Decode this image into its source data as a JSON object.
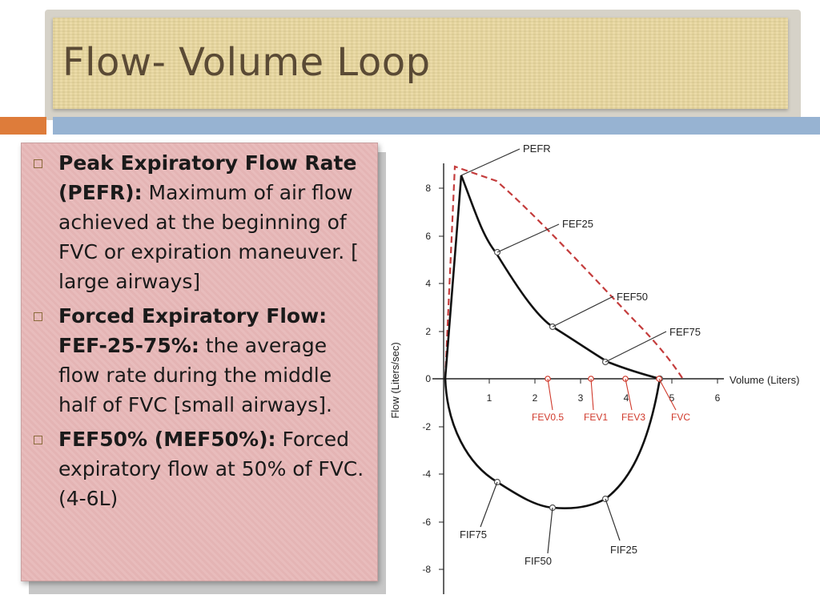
{
  "slide": {
    "title": "Flow- Volume Loop",
    "colors": {
      "title_bg": "#ead9a1",
      "accent_orange": "#de7c3a",
      "accent_blue": "#97b3d2",
      "panel_bg": "#e7b8b8",
      "title_text": "#5a4a35"
    }
  },
  "bullets": [
    {
      "term": "Peak Expiratory Flow Rate (PEFR):",
      "text": " Maximum of air flow achieved at the beginning of FVC or expiration maneuver. [ large airways]"
    },
    {
      "term": "Forced Expiratory Flow: FEF-25-75%:",
      "text": " the average flow rate during the middle half of FVC [small airways]."
    },
    {
      "term": "FEF50% (MEF50%):",
      "text": " Forced expiratory flow at 50% of FVC. (4-6L)"
    }
  ],
  "diagram": {
    "y_axis_label": "Flow (Liters/sec)",
    "x_axis_label": "Volume (Liters)",
    "y_ticks": [
      "8",
      "6",
      "4",
      "2",
      "0",
      "-2",
      "-4",
      "-6",
      "-8"
    ],
    "x_ticks": [
      "1",
      "2",
      "3",
      "4",
      "5",
      "6"
    ],
    "labels": {
      "pefr": "PEFR",
      "fef25": "FEF25",
      "fef50": "FEF50",
      "fef75": "FEF75",
      "fev05": "FEV0.5",
      "fev1": "FEV1",
      "fev3": "FEV3",
      "fvc": "FVC",
      "fif75": "FIF75",
      "fif50": "FIF50",
      "fif25": "FIF25"
    },
    "colors": {
      "curve": "#111111",
      "dashed": "#c43c3c",
      "fev_labels": "#d0392b"
    }
  }
}
